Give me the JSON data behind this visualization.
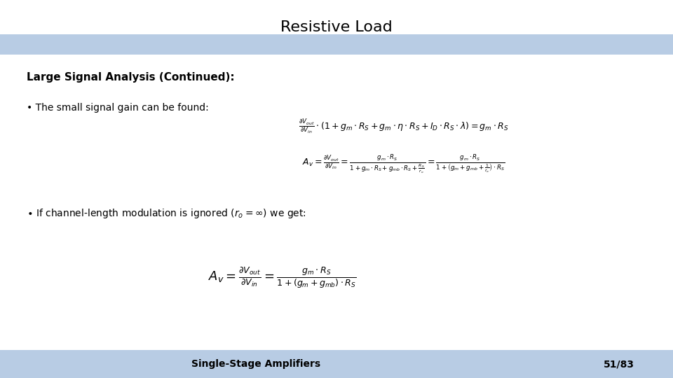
{
  "title": "Resistive Load",
  "title_fontsize": 16,
  "background_color": "#ffffff",
  "header_bar_color": "#b8cce4",
  "footer_bar_color": "#b8cce4",
  "bold_text": "Large Signal Analysis (Continued):",
  "bullet1": "• The small signal gain can be found:",
  "bullet2": "• If channel-length modulation is ignored (r₀=∞) we get:",
  "footer_left": "Single-Stage Amplifiers",
  "footer_right": "51/83"
}
